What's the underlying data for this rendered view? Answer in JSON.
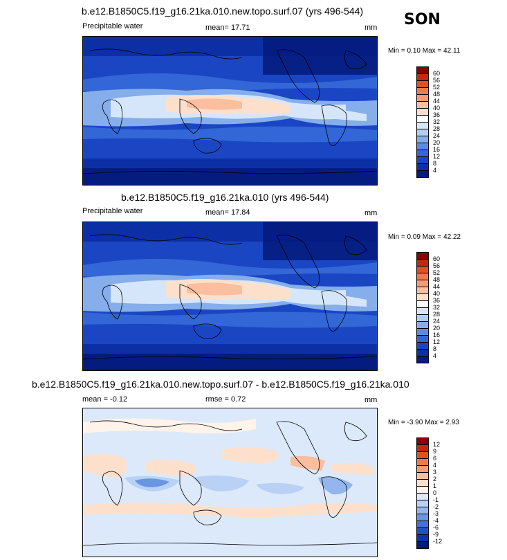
{
  "season": "SON",
  "panels": [
    {
      "title": "b.e12.B1850C5.f19_g16.21ka.010.new.topo.surf.07 (yrs 496-544)",
      "left": "Precipitable water",
      "center": "mean=  17.71",
      "right": "mm",
      "minmax": "Min =  0.10 Max = 42.11"
    },
    {
      "title": "b.e12.B1850C5.f19_g16.21ka.010 (yrs 496-544)",
      "left": "Precipitable water",
      "center": "mean=  17.84",
      "right": "mm",
      "minmax": "Min =  0.09 Max = 42.22"
    },
    {
      "title": "b.e12.B1850C5.f19_g16.21ka.010.new.topo.surf.07 - b.e12.B1850C5.f19_g16.21ka.010",
      "left": "mean = -0.12",
      "center": "rmse =  0.72",
      "right": "mm",
      "minmax": "Min = -3.90 Max =  2.93"
    }
  ],
  "colorbar_abs": {
    "labels": [
      "60",
      "56",
      "52",
      "48",
      "44",
      "40",
      "36",
      "32",
      "28",
      "24",
      "20",
      "16",
      "12",
      "8",
      "4"
    ],
    "colors": [
      "#8b0000",
      "#c0290f",
      "#e2501d",
      "#f07a4a",
      "#f79b74",
      "#fbbe9e",
      "#fde0cc",
      "#ffffff",
      "#d6e6fa",
      "#b0cdf3",
      "#85aeea",
      "#5b8be0",
      "#3366d6",
      "#1a46c4",
      "#0d2fa6",
      "#041c80"
    ]
  },
  "colorbar_diff": {
    "labels": [
      "12",
      "9",
      "6",
      "4",
      "3",
      "2",
      "1",
      "0",
      "-1",
      "-2",
      "-3",
      "-4",
      "-6",
      "-9",
      "-12"
    ],
    "colors": [
      "#8b0000",
      "#c0290f",
      "#e2501d",
      "#f07a4a",
      "#f79b74",
      "#fbbe9e",
      "#fde0cc",
      "#fff3ea",
      "#dce9fb",
      "#b8d1f5",
      "#92b6ed",
      "#6a95e3",
      "#4272d9",
      "#2350c9",
      "#0f34aa",
      "#031a7c"
    ]
  },
  "chart_data": [
    {
      "type": "heatmap",
      "title": "b.e12.B1850C5.f19_g16.21ka.010.new.topo.surf.07 (yrs 496-544)",
      "variable": "Precipitable water",
      "units": "mm",
      "season": "SON",
      "mean": 17.71,
      "min": 0.1,
      "max": 42.11,
      "contour_levels": [
        4,
        8,
        12,
        16,
        20,
        24,
        28,
        32,
        36,
        40,
        44,
        48,
        52,
        56,
        60
      ]
    },
    {
      "type": "heatmap",
      "title": "b.e12.B1850C5.f19_g16.21ka.010 (yrs 496-544)",
      "variable": "Precipitable water",
      "units": "mm",
      "season": "SON",
      "mean": 17.84,
      "min": 0.09,
      "max": 42.22,
      "contour_levels": [
        4,
        8,
        12,
        16,
        20,
        24,
        28,
        32,
        36,
        40,
        44,
        48,
        52,
        56,
        60
      ]
    },
    {
      "type": "heatmap",
      "title": "b.e12.B1850C5.f19_g16.21ka.010.new.topo.surf.07 - b.e12.B1850C5.f19_g16.21ka.010",
      "units": "mm",
      "season": "SON",
      "mean": -0.12,
      "rmse": 0.72,
      "min": -3.9,
      "max": 2.93,
      "contour_levels": [
        -12,
        -9,
        -6,
        -4,
        -3,
        -2,
        -1,
        0,
        1,
        2,
        3,
        4,
        6,
        9,
        12
      ]
    }
  ]
}
